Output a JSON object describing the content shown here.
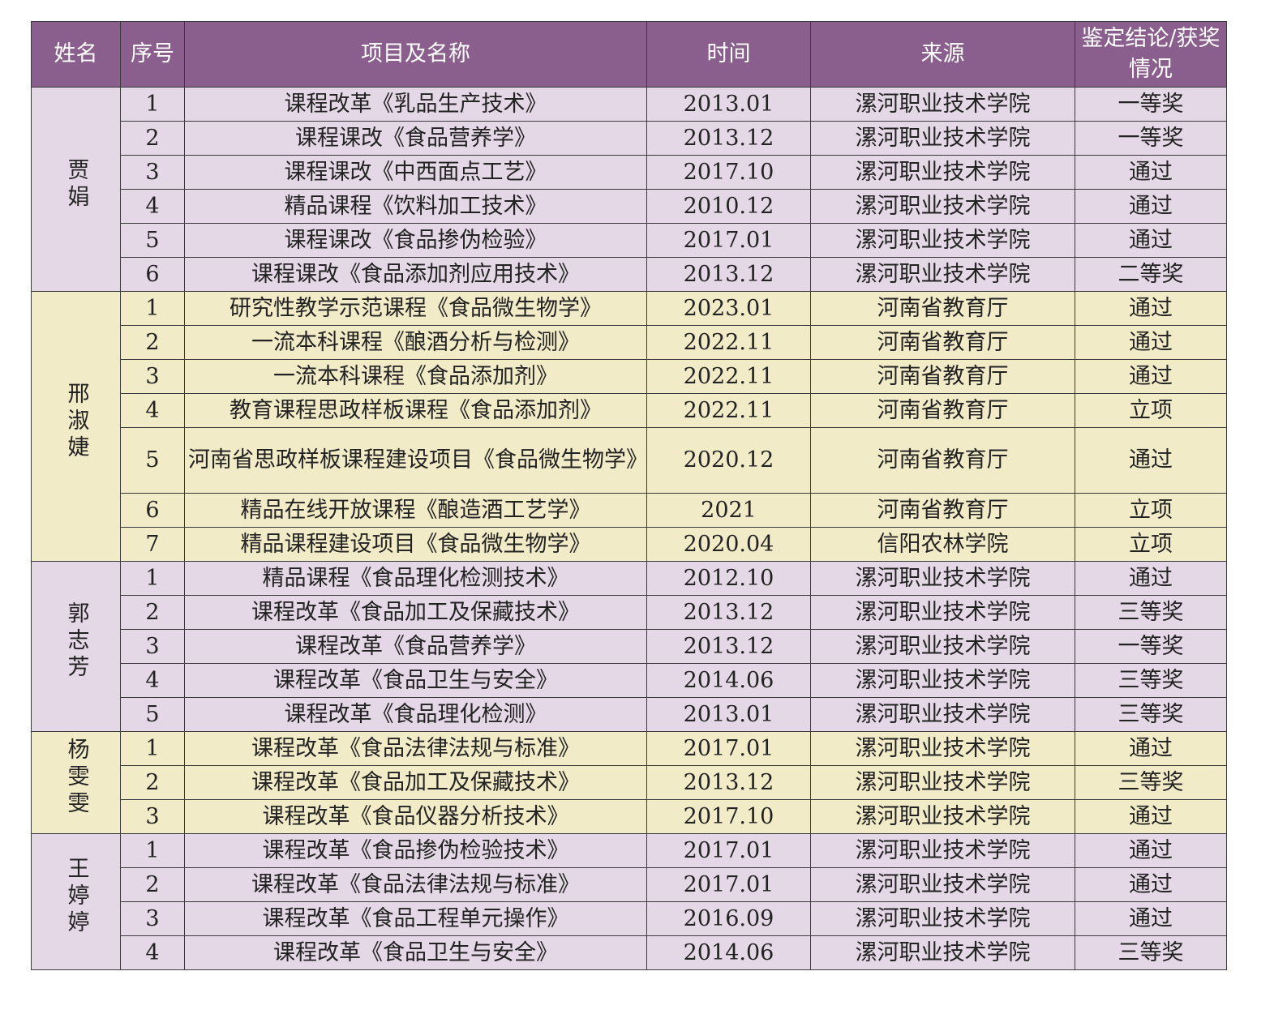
{
  "colors": {
    "header": "#8a5f8e",
    "purple_band": "#e4d7e6",
    "yellow_band": "#f2ebc8"
  },
  "headers": [
    "姓名",
    "序号",
    "项目及名称",
    "时间",
    "来源",
    "鉴定结论/获奖情况"
  ],
  "groups": [
    {
      "name": "贾娟",
      "rows": [
        [
          "1",
          "课程改革《乳品生产技术》",
          "2013.01",
          "漯河职业技术学院",
          "一等奖"
        ],
        [
          "2",
          "课程课改《食品营养学》",
          "2013.12",
          "漯河职业技术学院",
          "一等奖"
        ],
        [
          "3",
          "课程课改《中西面点工艺》",
          "2017.10",
          "漯河职业技术学院",
          "通过"
        ],
        [
          "4",
          "精品课程《饮料加工技术》",
          "2010.12",
          "漯河职业技术学院",
          "通过"
        ],
        [
          "5",
          "课程课改《食品掺伪检验》",
          "2017.01",
          "漯河职业技术学院",
          "通过"
        ],
        [
          "6",
          "课程课改《食品添加剂应用技术》",
          "2013.12",
          "漯河职业技术学院",
          "二等奖"
        ]
      ]
    },
    {
      "name": "邢淑婕",
      "rows": [
        [
          "1",
          "研究性教学示范课程《食品微生物学》",
          "2023.01",
          "河南省教育厅",
          "通过"
        ],
        [
          "2",
          "一流本科课程《酿酒分析与检测》",
          "2022.11",
          "河南省教育厅",
          "通过"
        ],
        [
          "3",
          "一流本科课程《食品添加剂》",
          "2022.11",
          "河南省教育厅",
          "通过"
        ],
        [
          "4",
          "教育课程思政样板课程《食品添加剂》",
          "2022.11",
          "河南省教育厅",
          "立项"
        ],
        [
          "5",
          "河南省思政样板课程建设项目《食品微生物学》",
          "2020.12",
          "河南省教育厅",
          "通过"
        ],
        [
          "6",
          "精品在线开放课程《酿造酒工艺学》",
          "2021",
          "河南省教育厅",
          "立项"
        ],
        [
          "7",
          "精品课程建设项目《食品微生物学》",
          "2020.04",
          "信阳农林学院",
          "立项"
        ]
      ]
    },
    {
      "name": "郭志芳",
      "rows": [
        [
          "1",
          "精品课程《食品理化检测技术》",
          "2012.10",
          "漯河职业技术学院",
          "通过"
        ],
        [
          "2",
          "课程改革《食品加工及保藏技术》",
          "2013.12",
          "漯河职业技术学院",
          "三等奖"
        ],
        [
          "3",
          "课程改革《食品营养学》",
          "2013.12",
          "漯河职业技术学院",
          "一等奖"
        ],
        [
          "4",
          "课程改革《食品卫生与安全》",
          "2014.06",
          "漯河职业技术学院",
          "三等奖"
        ],
        [
          "5",
          "课程改革《食品理化检测》",
          "2013.01",
          "漯河职业技术学院",
          "三等奖"
        ]
      ]
    },
    {
      "name": "杨雯雯",
      "rows": [
        [
          "1",
          "课程改革《食品法律法规与标准》",
          "2017.01",
          "漯河职业技术学院",
          "通过"
        ],
        [
          "2",
          "课程改革《食品加工及保藏技术》",
          "2013.12",
          "漯河职业技术学院",
          "三等奖"
        ],
        [
          "3",
          "课程改革《食品仪器分析技术》",
          "2017.10",
          "漯河职业技术学院",
          "通过"
        ]
      ]
    },
    {
      "name": "王婷婷",
      "rows": [
        [
          "1",
          "课程改革《食品掺伪检验技术》",
          "2017.01",
          "漯河职业技术学院",
          "通过"
        ],
        [
          "2",
          "课程改革《食品法律法规与标准》",
          "2017.01",
          "漯河职业技术学院",
          "通过"
        ],
        [
          "3",
          "课程改革《食品工程单元操作》",
          "2016.09",
          "漯河职业技术学院",
          "通过"
        ],
        [
          "4",
          "课程改革《食品卫生与安全》",
          "2014.06",
          "漯河职业技术学院",
          "三等奖"
        ]
      ]
    }
  ]
}
